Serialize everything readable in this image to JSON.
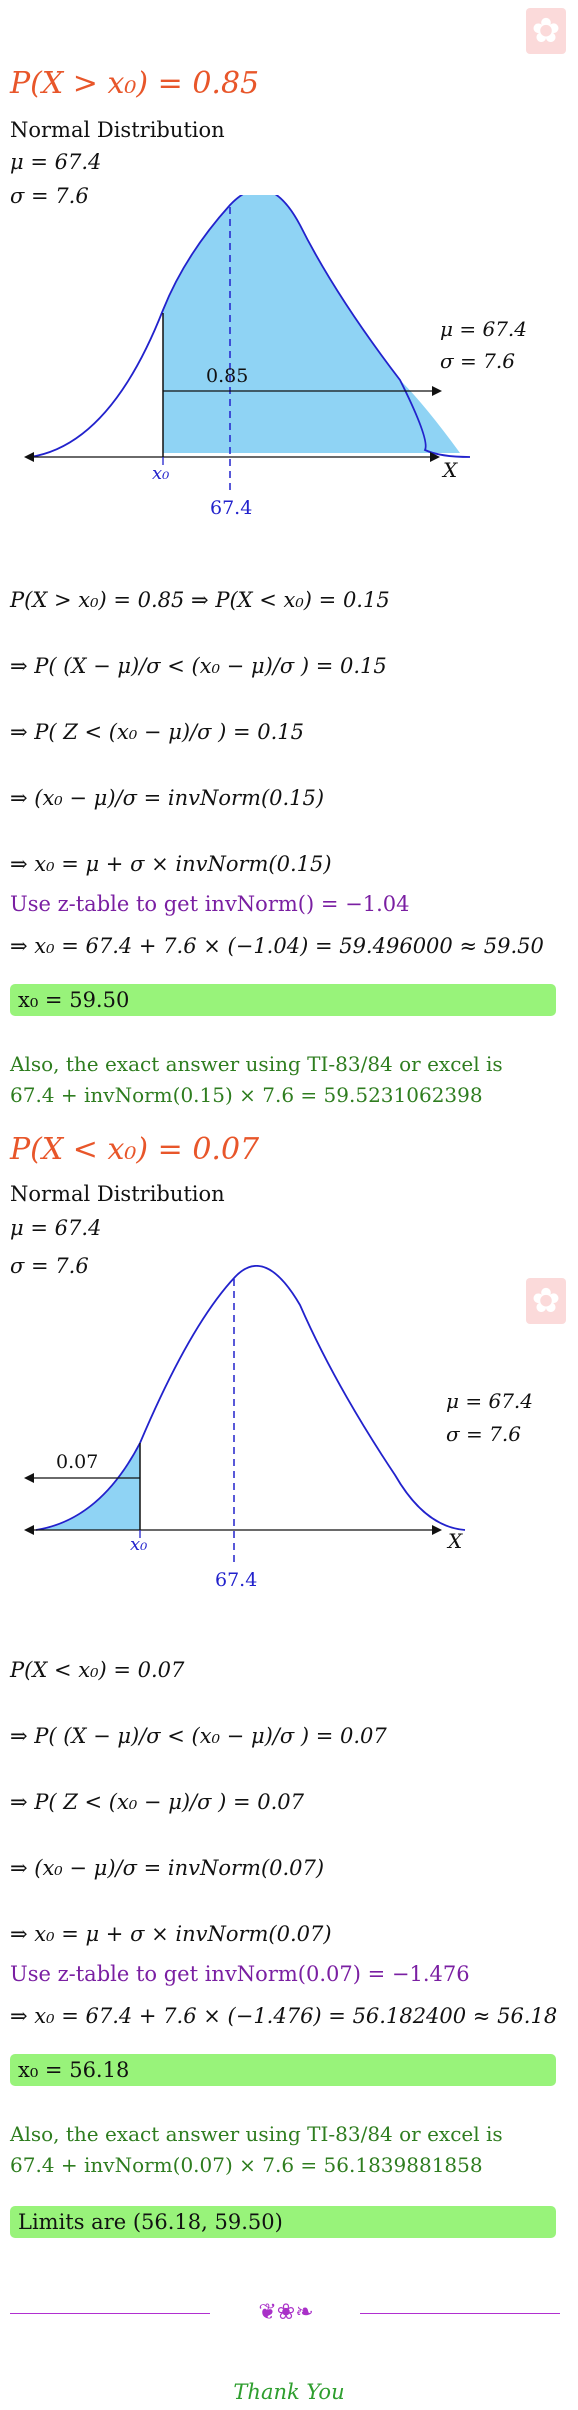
{
  "part1": {
    "title": "P(X > x₀) = 0.85",
    "dist_label": "Normal Distribution",
    "mu_line": "μ = 67.4",
    "sigma_line": "σ = 7.6",
    "graph": {
      "mu_label": "μ = 67.4",
      "sigma_label": "σ = 7.6",
      "area_label": "0.85",
      "x0_label": "x₀",
      "mean_label": "67.4",
      "axis_label": "X"
    },
    "steps": [
      "P(X > x₀) = 0.85 ⇒ P(X < x₀) = 0.15",
      "⇒ P( (X − μ)/σ < (x₀ − μ)/σ ) = 0.15",
      "⇒ P( Z < (x₀ − μ)/σ ) = 0.15",
      "⇒ (x₀ − μ)/σ = invNorm(0.15)",
      "⇒ x₀ = μ + σ × invNorm(0.15)"
    ],
    "ztable_note": "Use z-table to get invNorm() = −1.04",
    "compute_line": "⇒ x₀ = 67.4 + 7.6 × (−1.04) = 59.496000 ≈ 59.50",
    "result": "x₀ = 59.50",
    "exact_line1": "Also, the exact answer using TI-83/84 or excel is",
    "exact_line2": "67.4 + invNorm(0.15) × 7.6 = 59.5231062398"
  },
  "part2": {
    "title": "P(X < x₀) = 0.07",
    "dist_label": "Normal Distribution",
    "mu_line": "μ = 67.4",
    "sigma_line": "σ = 7.6",
    "graph": {
      "mu_label": "μ = 67.4",
      "sigma_label": "σ = 7.6",
      "area_label": "0.07",
      "x0_label": "x₀",
      "mean_label": "67.4",
      "axis_label": "X"
    },
    "steps": [
      "P(X < x₀) = 0.07",
      "⇒ P( (X − μ)/σ < (x₀ − μ)/σ ) = 0.07",
      "⇒ P( Z < (x₀ − μ)/σ ) = 0.07",
      "⇒ (x₀ − μ)/σ = invNorm(0.07)",
      "⇒ x₀ = μ + σ × invNorm(0.07)"
    ],
    "ztable_note": "Use z-table to get invNorm(0.07) = −1.476",
    "compute_line": "⇒ x₀ = 67.4 + 7.6 × (−1.476) = 56.182400 ≈ 56.18",
    "result": "x₀ = 56.18",
    "exact_line1": "Also, the exact answer using TI-83/84 or excel is",
    "exact_line2": "67.4 + invNorm(0.07) × 7.6 = 56.1839881858"
  },
  "limits": "Limits are (56.18, 59.50)",
  "ornament": "❦❀❧",
  "thanks": "Thank You",
  "colors": {
    "title": "#e8562a",
    "purple": "#7a1fa2",
    "green": "#2e7d1f",
    "box": "#98f37a",
    "curve": "#2222cc",
    "fill": "#8fd3f4"
  },
  "icons": [
    "star-watermark-icon",
    "ornament-icon"
  ]
}
